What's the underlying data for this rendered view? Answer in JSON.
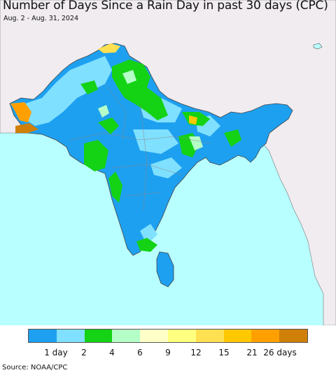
{
  "title": "Number of Days Since a Rain Day in past 30 days (CPC)",
  "subtitle": "Aug. 2 - Aug. 31, 2024",
  "source": "Source: NOAA/CPC",
  "legend": {
    "colors": [
      "#1ea0f0",
      "#80e0ff",
      "#14d214",
      "#b4ffc8",
      "#ffffc8",
      "#ffff80",
      "#ffe050",
      "#ffc800",
      "#ffa000",
      "#d08008"
    ],
    "labels": [
      "1 day",
      "2",
      "4",
      "6",
      "9",
      "12",
      "15",
      "21",
      "26 days"
    ]
  },
  "palette": {
    "ocean": "#b8ffff",
    "land_outside": "#f0ecf0",
    "border": "#555555"
  }
}
